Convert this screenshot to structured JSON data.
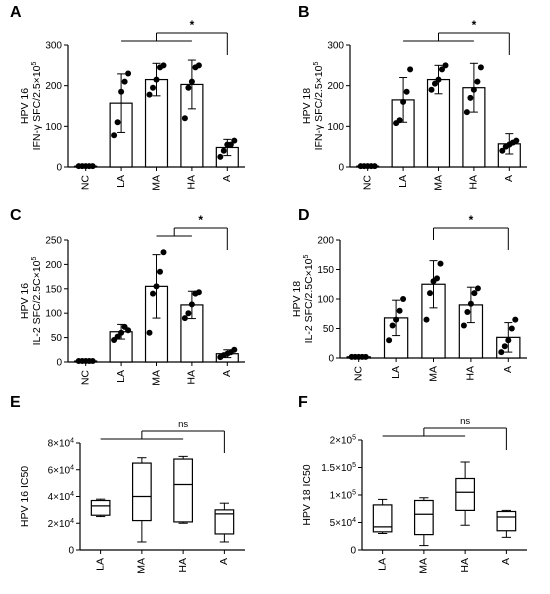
{
  "chart_data": [
    {
      "type": "bar",
      "panel": "A",
      "ylabel_line1": "HPV 16",
      "ylabel_line2": "IFN-γ SFC/2.5×10",
      "ylabel_sup": "5",
      "yticks": [
        "0",
        "100",
        "200",
        "300"
      ],
      "ylim": [
        0,
        300
      ],
      "categories": [
        "NC",
        "LA",
        "MA",
        "HA",
        "A"
      ],
      "values": [
        2,
        157,
        215,
        203,
        48
      ],
      "errors": [
        1,
        72,
        40,
        60,
        20
      ],
      "points": [
        [
          2,
          2,
          2,
          2,
          2
        ],
        [
          78,
          110,
          185,
          210,
          230
        ],
        [
          178,
          195,
          215,
          245,
          250
        ],
        [
          120,
          195,
          210,
          245,
          250
        ],
        [
          25,
          40,
          55,
          55,
          65
        ]
      ],
      "significance": {
        "label": "*",
        "from_group": [
          "LA",
          "HA"
        ],
        "to": "A"
      }
    },
    {
      "type": "bar",
      "panel": "B",
      "ylabel_line1": "HPV 18",
      "ylabel_line2": "IFN-γ SFC/2.5×10",
      "ylabel_sup": "5",
      "yticks": [
        "0",
        "100",
        "200",
        "300"
      ],
      "ylim": [
        0,
        300
      ],
      "categories": [
        "NC",
        "LA",
        "MA",
        "HA",
        "A"
      ],
      "values": [
        2,
        165,
        215,
        195,
        57
      ],
      "errors": [
        1,
        55,
        35,
        60,
        25
      ],
      "points": [
        [
          2,
          2,
          2,
          2,
          2
        ],
        [
          108,
          115,
          160,
          185,
          240
        ],
        [
          190,
          205,
          215,
          240,
          250
        ],
        [
          135,
          170,
          190,
          210,
          245
        ],
        [
          40,
          50,
          55,
          60,
          65
        ]
      ],
      "significance": {
        "label": "*",
        "from_group": [
          "LA",
          "HA"
        ],
        "to": "A"
      }
    },
    {
      "type": "bar",
      "panel": "C",
      "ylabel_line1": "HPV 16",
      "ylabel_line2": "IL-2 SFC/2.5C×10",
      "ylabel_sup": "5",
      "yticks": [
        "0",
        "50",
        "100",
        "150",
        "200",
        "250"
      ],
      "ylim": [
        0,
        250
      ],
      "categories": [
        "NC",
        "LA",
        "MA",
        "HA",
        "A"
      ],
      "values": [
        2,
        62,
        155,
        117,
        17
      ],
      "errors": [
        1,
        15,
        65,
        28,
        8
      ],
      "points": [
        [
          2,
          2,
          2,
          2,
          2
        ],
        [
          45,
          52,
          60,
          72,
          65
        ],
        [
          60,
          140,
          155,
          185,
          225
        ],
        [
          90,
          100,
          118,
          140,
          143
        ],
        [
          10,
          14,
          17,
          20,
          25
        ]
      ],
      "significance": {
        "label": "*",
        "from_group": [
          "MA",
          "HA"
        ],
        "to": "A"
      }
    },
    {
      "type": "bar",
      "panel": "D",
      "ylabel_line1": "HPV 18",
      "ylabel_line2": "IL-2 SFC/2.5C×10",
      "ylabel_sup": "5",
      "yticks": [
        "0",
        "50",
        "100",
        "150",
        "200"
      ],
      "ylim": [
        0,
        200
      ],
      "categories": [
        "NC",
        "LA",
        "MA",
        "HA",
        "A"
      ],
      "values": [
        2,
        68,
        125,
        90,
        35
      ],
      "errors": [
        1,
        30,
        40,
        30,
        25
      ],
      "points": [
        [
          2,
          2,
          2,
          2,
          2
        ],
        [
          30,
          55,
          65,
          80,
          100
        ],
        [
          65,
          110,
          130,
          135,
          160
        ],
        [
          55,
          78,
          92,
          110,
          118
        ],
        [
          10,
          20,
          30,
          50,
          65
        ]
      ],
      "significance": {
        "label": "*",
        "from": "MA",
        "to": "A"
      }
    },
    {
      "type": "box",
      "panel": "E",
      "ylabel": "HPV 16 IC50",
      "yticks": [
        {
          "m": "0",
          "e": ""
        },
        {
          "m": "2×10",
          "e": "4"
        },
        {
          "m": "4×10",
          "e": "4"
        },
        {
          "m": "6×10",
          "e": "4"
        },
        {
          "m": "8×10",
          "e": "4"
        }
      ],
      "ylim": [
        0,
        80000
      ],
      "categories": [
        "LA",
        "MA",
        "HA",
        "A"
      ],
      "boxes": [
        {
          "min": 25000,
          "q1": 26000,
          "median": 33000,
          "q3": 37000,
          "max": 38000
        },
        {
          "min": 6000,
          "q1": 22000,
          "median": 40000,
          "q3": 65000,
          "max": 69000
        },
        {
          "min": 20000,
          "q1": 21000,
          "median": 49000,
          "q3": 68000,
          "max": 70000
        },
        {
          "min": 6000,
          "q1": 12000,
          "median": 27000,
          "q3": 30000,
          "max": 35000
        }
      ],
      "significance": {
        "label": "ns",
        "from_group": [
          "LA",
          "HA"
        ],
        "to": "A"
      }
    },
    {
      "type": "box",
      "panel": "F",
      "ylabel": "HPV 18 IC50",
      "yticks": [
        {
          "m": "0",
          "e": ""
        },
        {
          "m": "5×10",
          "e": "4"
        },
        {
          "m": "1×10",
          "e": "5"
        },
        {
          "m": "1.5×10",
          "e": "5"
        },
        {
          "m": "2×10",
          "e": "5"
        }
      ],
      "ylim": [
        0,
        200000
      ],
      "categories": [
        "LA",
        "MA",
        "HA",
        "A"
      ],
      "boxes": [
        {
          "min": 30000,
          "q1": 33000,
          "median": 42000,
          "q3": 82000,
          "max": 92000
        },
        {
          "min": 8000,
          "q1": 28000,
          "median": 65000,
          "q3": 90000,
          "max": 95000
        },
        {
          "min": 45000,
          "q1": 72000,
          "median": 105000,
          "q3": 130000,
          "max": 160000
        },
        {
          "min": 23000,
          "q1": 35000,
          "median": 60000,
          "q3": 70000,
          "max": 72000
        }
      ],
      "significance": {
        "label": "ns",
        "from_group": [
          "LA",
          "HA"
        ],
        "to": "A"
      }
    }
  ]
}
